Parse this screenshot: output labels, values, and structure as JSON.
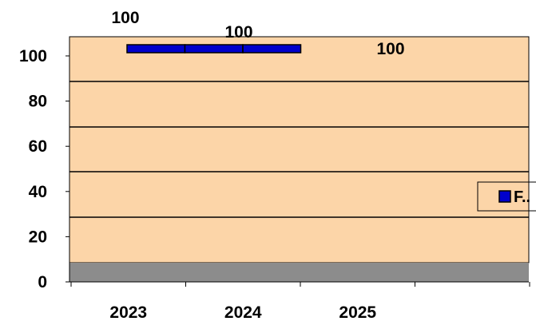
{
  "chart_data": {
    "type": "bar",
    "categories": [
      "2023",
      "2024",
      "2025"
    ],
    "series": [
      {
        "name": "F...",
        "values": [
          100,
          100,
          100
        ],
        "color": "#0000cc"
      }
    ],
    "ylim": [
      0,
      100
    ],
    "yticks": [
      "0",
      "20",
      "40",
      "60",
      "80",
      "100"
    ],
    "data_labels": [
      "100",
      "100",
      "100"
    ],
    "legend_text": "F..",
    "legend_placement": "right",
    "grid": true,
    "plot_background": "#fcd5a8",
    "floor_color": "#8c8c8c"
  }
}
